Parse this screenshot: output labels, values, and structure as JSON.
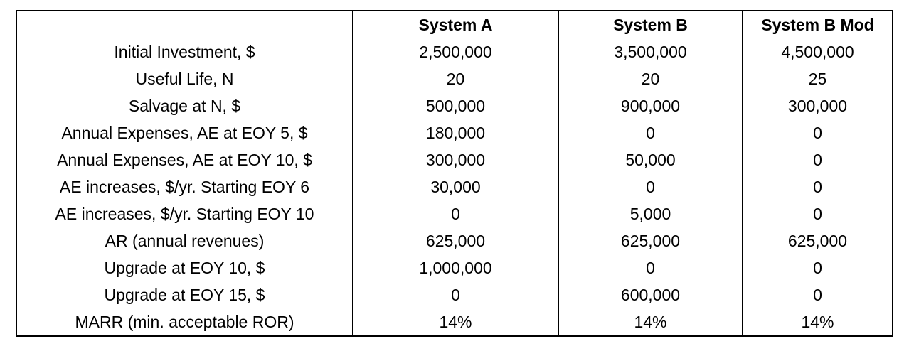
{
  "table": {
    "headers": [
      "",
      "System A",
      "System B",
      "System B Mod"
    ],
    "rows": [
      [
        "Initial Investment, $",
        "2,500,000",
        "3,500,000",
        "4,500,000"
      ],
      [
        "Useful Life, N",
        "20",
        "20",
        "25"
      ],
      [
        "Salvage at N, $",
        "500,000",
        "900,000",
        "300,000"
      ],
      [
        "Annual Expenses, AE at EOY 5, $",
        "180,000",
        "0",
        "0"
      ],
      [
        "Annual Expenses, AE at EOY 10, $",
        "300,000",
        "50,000",
        "0"
      ],
      [
        "AE increases, $/yr. Starting EOY 6",
        "30,000",
        "0",
        "0"
      ],
      [
        "AE increases, $/yr. Starting EOY 10",
        "0",
        "5,000",
        "0"
      ],
      [
        "AR (annual revenues)",
        "625,000",
        "625,000",
        "625,000"
      ],
      [
        "Upgrade at EOY 10, $",
        "1,000,000",
        "0",
        "0"
      ],
      [
        "Upgrade at EOY 15, $",
        "0",
        "600,000",
        "0"
      ],
      [
        "MARR (min. acceptable ROR)",
        "14%",
        "14%",
        "14%"
      ]
    ]
  }
}
